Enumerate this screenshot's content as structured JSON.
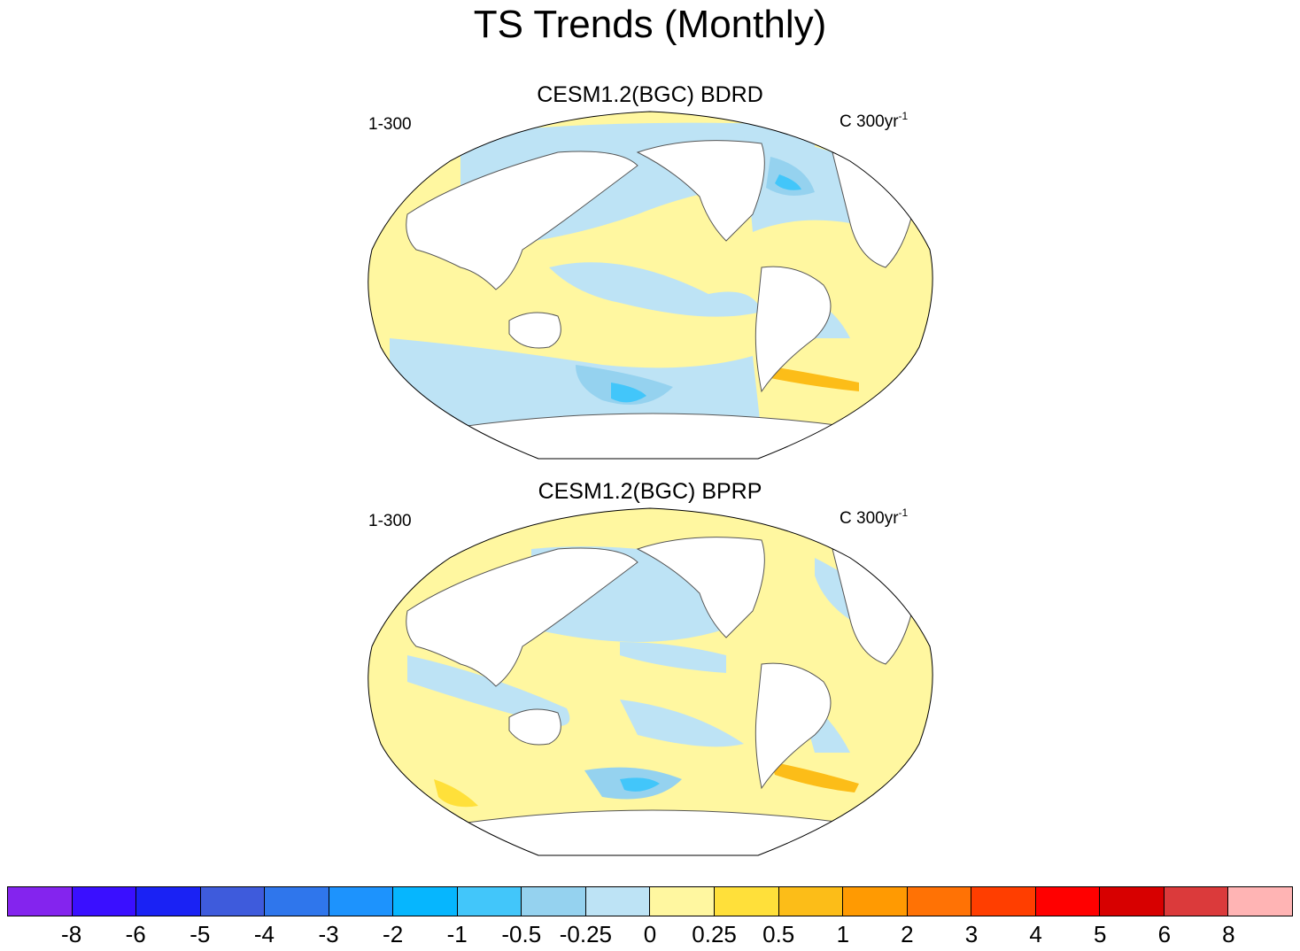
{
  "title": "TS Trends (Monthly)",
  "panels": [
    {
      "title": "CESM1.2(BGC) BDRD",
      "left_label": "1-300",
      "units": "C 300yr",
      "units_exp": "-1"
    },
    {
      "title": "CESM1.2(BGC) BPRP",
      "left_label": "1-300",
      "units": "C 300yr",
      "units_exp": "-1"
    }
  ],
  "colorbar": {
    "colors": [
      "#8424ee",
      "#3a0fff",
      "#1a22f4",
      "#3e5bdc",
      "#2f76ec",
      "#1d93fd",
      "#06b6fe",
      "#42c6fa",
      "#95d2ef",
      "#bde3f5",
      "#fff7a0",
      "#ffe03a",
      "#fcbd18",
      "#ff9a02",
      "#ff7205",
      "#ff3e00",
      "#ff0000",
      "#d70000",
      "#db3a3b",
      "#ffb4b4"
    ],
    "labels": [
      "-8",
      "-6",
      "-5",
      "-4",
      "-3",
      "-2",
      "-1",
      "-0.5",
      "-0.25",
      "0",
      "0.25",
      "0.5",
      "1",
      "2",
      "3",
      "4",
      "5",
      "6",
      "8"
    ]
  }
}
